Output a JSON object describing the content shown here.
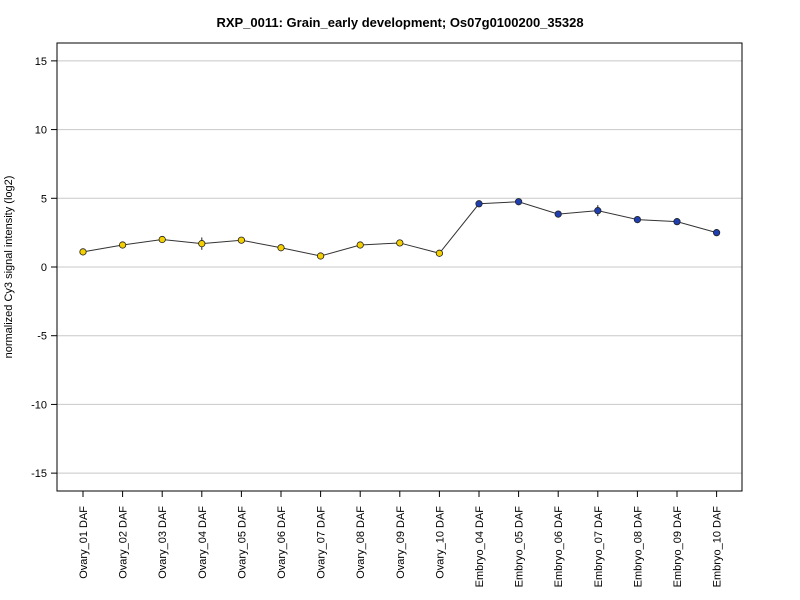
{
  "chart_data": {
    "type": "line",
    "title": "RXP_0011: Grain_early development; Os07g0100200_35328",
    "xlabel": "",
    "ylabel": "normalized Cy3 signal intensity (log2)",
    "ylim": [
      -16.3,
      16.3
    ],
    "yticks": [
      -15,
      -10,
      -5,
      0,
      5,
      10,
      15
    ],
    "ytick_labels": [
      "-15",
      "-10",
      "-5",
      "0",
      "5",
      "10",
      "15"
    ],
    "grid": "horizontal",
    "categories": [
      "Ovary_01 DAF",
      "Ovary_02 DAF",
      "Ovary_03 DAF",
      "Ovary_04 DAF",
      "Ovary_05 DAF",
      "Ovary_06 DAF",
      "Ovary_07 DAF",
      "Ovary_08 DAF",
      "Ovary_09 DAF",
      "Ovary_10 DAF",
      "Embryo_04 DAF",
      "Embryo_05 DAF",
      "Embryo_06 DAF",
      "Embryo_07 DAF",
      "Embryo_08 DAF",
      "Embryo_09 DAF",
      "Embryo_10 DAF"
    ],
    "values": [
      1.1,
      1.6,
      2.0,
      1.7,
      1.95,
      1.4,
      0.8,
      1.6,
      1.75,
      1.0,
      4.6,
      4.75,
      3.85,
      4.1,
      3.45,
      3.3,
      2.5
    ],
    "errors": [
      0.25,
      0.1,
      0.1,
      0.45,
      0.15,
      0.1,
      0.15,
      0.1,
      0.1,
      0.1,
      0.15,
      0.1,
      0.1,
      0.4,
      0.1,
      0.1,
      0.25
    ],
    "point_colors": [
      "#f5d000",
      "#f5d000",
      "#f5d000",
      "#f5d000",
      "#f5d000",
      "#f5d000",
      "#f5d000",
      "#f5d000",
      "#f5d000",
      "#f5d000",
      "#1f3fb0",
      "#1f3fb0",
      "#1f3fb0",
      "#1f3fb0",
      "#1f3fb0",
      "#1f3fb0",
      "#1f3fb0"
    ],
    "line_color": "#333333",
    "grid_color": "#c8c8c8"
  }
}
